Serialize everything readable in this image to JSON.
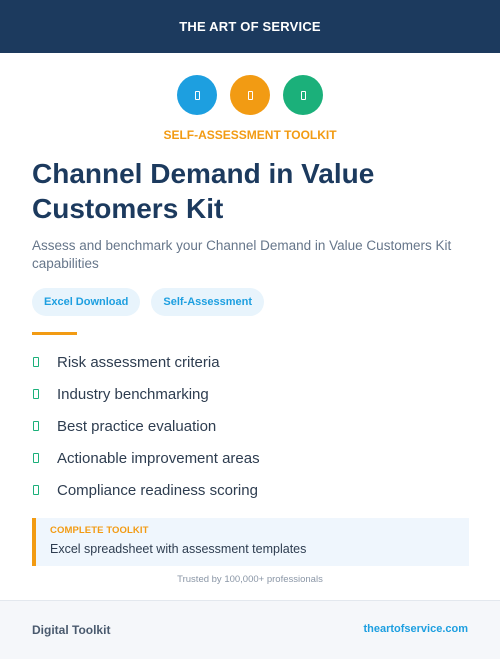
{
  "header": {
    "brand": "THE ART OF SERVICE"
  },
  "icons": [
    "document-icon",
    "document-icon",
    "document-icon"
  ],
  "eyebrow": "SELF-ASSESSMENT TOOLKIT",
  "title": "Channel Demand in Value Customers Kit",
  "subtitle": "Assess and benchmark your Channel Demand in Value Customers Kit capabilities",
  "tags": [
    "Excel Download",
    "Self-Assessment"
  ],
  "features": [
    "Risk assessment criteria",
    "Industry benchmarking",
    "Best practice evaluation",
    "Actionable improvement areas",
    "Compliance readiness scoring"
  ],
  "callout": {
    "label": "COMPLETE TOOLKIT",
    "text": "Excel spreadsheet with assessment templates"
  },
  "trust": "Trusted by 100,000+ professionals",
  "footer": {
    "left": "Digital Toolkit",
    "right": "theartofservice.com"
  },
  "colors": {
    "navy": "#1c3a5e",
    "blue": "#1d9fe0",
    "orange": "#f29b13",
    "green": "#1bb07a"
  }
}
